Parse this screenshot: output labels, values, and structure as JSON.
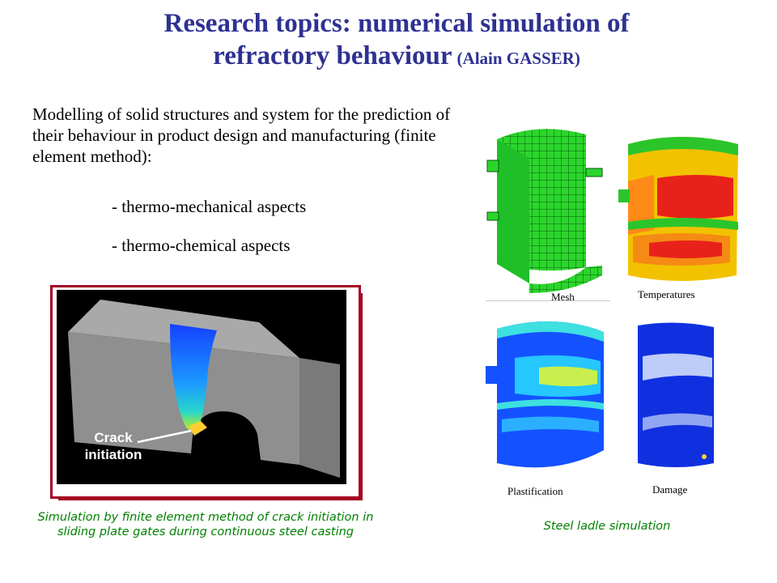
{
  "title": {
    "line1": "Research topics: numerical simulation of",
    "line2": "refractory behaviour",
    "author": "(Alain GASSER)"
  },
  "intro": "Modelling of solid structures and system for the prediction of their behaviour in product design and manufacturing (finite element method):",
  "bullets": [
    "- thermo-mechanical aspects",
    "- thermo-chemical aspects"
  ],
  "simulation": {
    "label_line1": "Crack",
    "label_line2": "initiation",
    "caption": "Simulation by finite element  method of crack initiation in sliding plate gates during continuous steel casting"
  },
  "ladle": {
    "labels": {
      "mesh": "Mesh",
      "temperatures": "Temperatures",
      "plastification": "Plastification",
      "damage": "Damage"
    },
    "caption": "Steel ladle simulation"
  },
  "colors": {
    "title": "#2e3192",
    "frame": "#a50021",
    "caption": "#008000"
  }
}
